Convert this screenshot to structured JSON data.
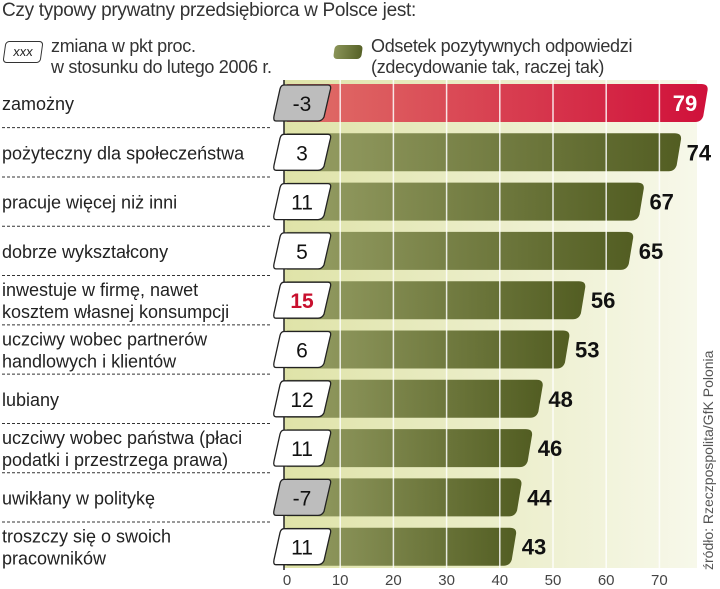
{
  "title": "Czy typowy prywatny przedsiębiorca w Polsce jest:",
  "legend": {
    "change_box": "xxx",
    "change_line1": "zmiana w pkt proc.",
    "change_line2": "w stosunku do lutego 2006 r.",
    "bar_line1": "Odsetek pozytywnych odpowiedzi",
    "bar_line2": "(zdecydowanie tak, raczej tak)"
  },
  "source": "źródło: Rzeczpospolita/GfK Polonia",
  "colors": {
    "highlight": "#d0153a",
    "bar": "#5a6529",
    "negative_box": "#bdbdbd",
    "background": "#eef0c8"
  },
  "chart_data": {
    "type": "bar",
    "orientation": "horizontal",
    "categories": [
      [
        "zamożny"
      ],
      [
        "pożyteczny dla społeczeństwa"
      ],
      [
        "pracuje więcej niż inni"
      ],
      [
        "dobrze wykształcony"
      ],
      [
        "inwestuje w firmę, nawet",
        "kosztem własnej konsumpcji"
      ],
      [
        "uczciwy wobec partnerów",
        "handlowych i klientów"
      ],
      [
        "lubiany"
      ],
      [
        "uczciwy wobec państwa (płaci",
        "podatki i przestrzega prawa)"
      ],
      [
        "uwikłany w politykę"
      ],
      [
        "troszczy się o swoich",
        "pracowników"
      ]
    ],
    "values": [
      79,
      74,
      67,
      65,
      56,
      53,
      48,
      46,
      44,
      43
    ],
    "changes": [
      "-3",
      "3",
      "11",
      "5",
      "15",
      "6",
      "12",
      "11",
      "-7",
      "11"
    ],
    "highlight_index": 0,
    "x_ticks": [
      "0",
      "10",
      "20",
      "30",
      "40",
      "50",
      "60",
      "70"
    ],
    "xlim": [
      0,
      80
    ],
    "xlabel": "",
    "ylabel": ""
  }
}
